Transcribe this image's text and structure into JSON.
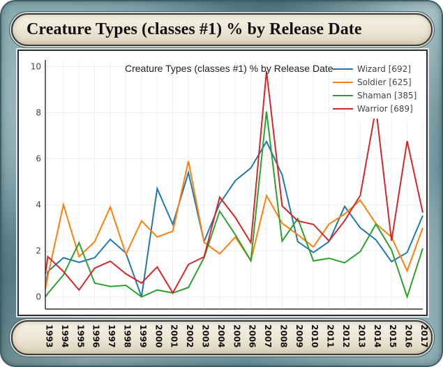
{
  "header": {
    "title": "Creature Types (classes #1) % by Release Date"
  },
  "chart_data": {
    "type": "line",
    "title": "Creature Types (classes #1) % by Release Date",
    "xlabel": "",
    "ylabel": "",
    "ylim": [
      0,
      10
    ],
    "yticks": [
      "0",
      "2",
      "4",
      "6",
      "8",
      "10"
    ],
    "xticks": [
      "1993",
      "1994",
      "1995",
      "1996",
      "1997",
      "1998",
      "1999",
      "2000",
      "2001",
      "2002",
      "2003",
      "2004",
      "2005",
      "2006",
      "2007",
      "2008",
      "2009",
      "2010",
      "2011",
      "2012",
      "2013",
      "2014",
      "2015",
      "2016",
      "2017"
    ],
    "grid": true,
    "legend_position": "top-right",
    "x": [
      1992.85,
      1993,
      1994,
      1995,
      1996,
      1997,
      1998,
      1999,
      2000,
      2001,
      2002,
      2003,
      2004,
      2005,
      2006,
      2007,
      2008,
      2009,
      2010,
      2011,
      2012,
      2013,
      2014,
      2015,
      2016,
      2017
    ],
    "series": [
      {
        "name": "Wizard [692]",
        "color": "#1f77b4",
        "values": [
          0.35,
          1.1,
          1.7,
          1.5,
          1.7,
          2.5,
          1.9,
          0.0,
          4.7,
          3.15,
          5.4,
          2.4,
          4.05,
          5.05,
          5.6,
          6.75,
          5.3,
          2.4,
          1.93,
          2.4,
          3.93,
          3.0,
          2.48,
          1.53,
          1.93,
          3.53
        ]
      },
      {
        "name": "Soldier [625]",
        "color": "#ff7f0e",
        "values": [
          0.35,
          0.9,
          4.0,
          1.75,
          2.4,
          3.9,
          1.85,
          3.3,
          2.6,
          2.85,
          5.9,
          2.37,
          1.87,
          2.6,
          1.57,
          4.4,
          3.2,
          2.7,
          2.17,
          3.16,
          3.6,
          4.2,
          3.18,
          2.6,
          1.13,
          3.0
        ]
      },
      {
        "name": "Shaman [385]",
        "color": "#2ca02c",
        "values": [
          0.0,
          0.15,
          0.95,
          2.35,
          0.6,
          0.45,
          0.5,
          0.0,
          0.3,
          0.17,
          0.41,
          1.7,
          3.72,
          2.7,
          1.57,
          8.05,
          2.42,
          3.4,
          1.56,
          1.68,
          1.48,
          1.97,
          3.16,
          2.04,
          0.0,
          2.11
        ]
      },
      {
        "name": "Warrior [689]",
        "color": "#d62728",
        "values": [
          1.0,
          1.75,
          1.1,
          0.3,
          1.25,
          1.55,
          1.0,
          0.6,
          1.3,
          0.17,
          1.41,
          1.74,
          4.33,
          3.45,
          2.35,
          9.8,
          3.95,
          3.3,
          3.15,
          2.43,
          3.31,
          4.41,
          8.2,
          2.44,
          6.77,
          3.66
        ]
      }
    ]
  }
}
